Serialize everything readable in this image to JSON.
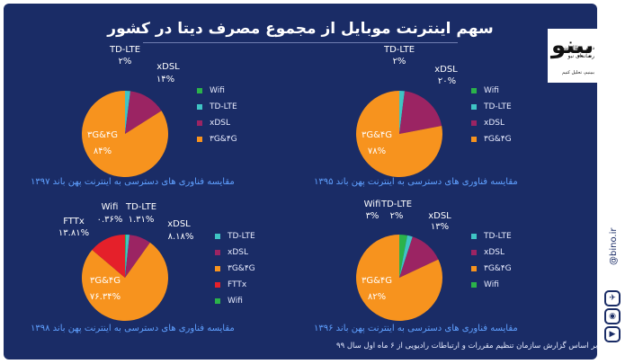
{
  "title": "سهم اینترنت موبایل از مجموع مصرف دیتا در کشور",
  "source": "بر اساس گزارش سازمان تنظیم مقررات و ارتباطات رادیویی از ۶ ماه اول سال ۹۹",
  "branding": {
    "logo": "بینو",
    "logo_sub1": "دفتر مطالعات",
    "logo_sub2": "رسانه‌ای نبو",
    "logo_sub3": "ببینیم، تحلیل کنیم",
    "website": "@bino.ir"
  },
  "colors": {
    "background": "#1a2c66",
    "wifi": "#2bb34a",
    "tdlte": "#3fc4c4",
    "xdsl": "#9b2463",
    "g34": "#f7931e",
    "fttx": "#e5202a",
    "caption": "#5fa0ff"
  },
  "chart_data": [
    {
      "type": "pie",
      "caption": "مقایسه فناوری های دسترسی به اینترنت پهن باند ۱۳۹۵",
      "legend": [
        "Wifi",
        "TD-LTE",
        "xDSL",
        "۳G&۴G"
      ],
      "slices": [
        {
          "name": "Wifi",
          "value": 0,
          "label": ""
        },
        {
          "name": "TD-LTE",
          "value": 2,
          "label": "۲%",
          "name_label": "TD-LTE"
        },
        {
          "name": "xDSL",
          "value": 20,
          "label": "۲۰%",
          "name_label": "xDSL"
        },
        {
          "name": "۳G&۴G",
          "value": 78,
          "label": "۷۸%",
          "name_label": "۳G&۴G"
        }
      ]
    },
    {
      "type": "pie",
      "caption": "مقایسه فناوری های دسترسی به اینترنت پهن باند ۱۳۹۷",
      "legend": [
        "Wifi",
        "TD-LTE",
        "xDSL",
        "۳G&۴G"
      ],
      "slices": [
        {
          "name": "Wifi",
          "value": 0,
          "label": ""
        },
        {
          "name": "TD-LTE",
          "value": 2,
          "label": "۲%",
          "name_label": "TD-LTE"
        },
        {
          "name": "xDSL",
          "value": 14,
          "label": "۱۴%",
          "name_label": "xDSL"
        },
        {
          "name": "۳G&۴G",
          "value": 84,
          "label": "۸۴%",
          "name_label": "۳G&۴G"
        }
      ]
    },
    {
      "type": "pie",
      "caption": "مقایسه فناوری های دسترسی به اینترنت پهن باند ۱۳۹۶",
      "legend": [
        "TD-LTE",
        "xDSL",
        "۳G&۴G",
        "Wifi"
      ],
      "slices": [
        {
          "name": "Wifi",
          "value": 3,
          "label": "۳%",
          "name_label": "Wifi"
        },
        {
          "name": "TD-LTE",
          "value": 2,
          "label": "۲%",
          "name_label": "TD-LTE"
        },
        {
          "name": "xDSL",
          "value": 13,
          "label": "۱۳%",
          "name_label": "xDSL"
        },
        {
          "name": "۳G&۴G",
          "value": 82,
          "label": "۸۲%",
          "name_label": "۳G&۴G"
        }
      ]
    },
    {
      "type": "pie",
      "caption": "مقایسه فناوری های دسترسی به اینترنت پهن باند ۱۳۹۸",
      "legend": [
        "TD-LTE",
        "xDSL",
        "۳G&۴G",
        "FTTx",
        "Wifi"
      ],
      "slices": [
        {
          "name": "Wifi",
          "value": 0.36,
          "label": "۰.۳۶%",
          "name_label": "Wifi"
        },
        {
          "name": "TD-LTE",
          "value": 1.31,
          "label": "۱.۳۱%",
          "name_label": "TD-LTE"
        },
        {
          "name": "xDSL",
          "value": 8.18,
          "label": "۸.۱۸%",
          "name_label": "xDSL"
        },
        {
          "name": "۳G&۴G",
          "value": 76.34,
          "label": "۷۶.۳۴%",
          "name_label": "۳G&۴G"
        },
        {
          "name": "FTTx",
          "value": 13.81,
          "label": "۱۳.۸۱%",
          "name_label": "FTTx"
        }
      ]
    }
  ]
}
